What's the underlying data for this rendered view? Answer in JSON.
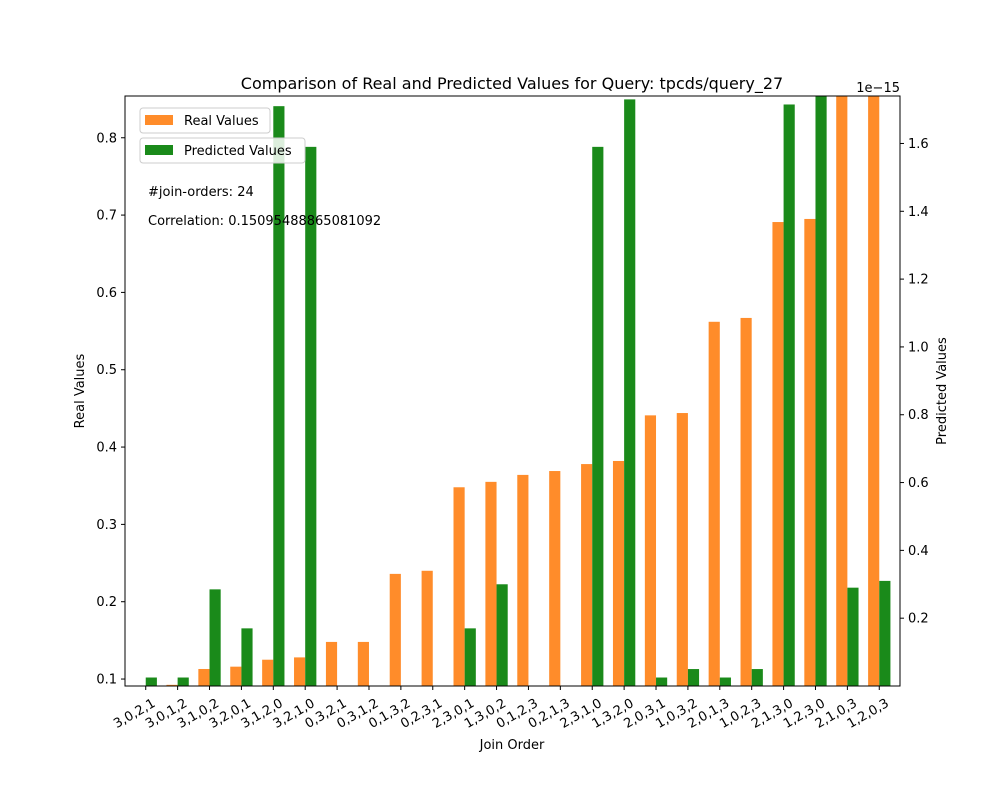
{
  "chart_data": {
    "type": "bar",
    "title": "Comparison of Real and Predicted Values for Query: tpcds/query_27",
    "xlabel": "Join Order",
    "ylabel": "Real Values",
    "ylabel_right": "Predicted Values",
    "right_axis_offset_text": "1e−15",
    "ylim": [
      0.091,
      0.854
    ],
    "ylim_right": [
      0.0,
      1.74
    ],
    "yticks": [
      0.1,
      0.2,
      0.3,
      0.4,
      0.5,
      0.6,
      0.7,
      0.8
    ],
    "yticks_right": [
      0.2,
      0.4,
      0.6,
      0.8,
      1.0,
      1.2,
      1.4,
      1.6
    ],
    "grid": false,
    "legend_placement": "top-left",
    "categories": [
      "3,0,2,1",
      "3,0,1,2",
      "3,1,0,2",
      "3,2,0,1",
      "3,1,2,0",
      "3,2,1,0",
      "0,3,2,1",
      "0,3,1,2",
      "0,1,3,2",
      "0,2,3,1",
      "2,3,0,1",
      "1,3,0,2",
      "0,1,2,3",
      "0,2,1,3",
      "2,3,1,0",
      "1,3,2,0",
      "2,0,3,1",
      "1,0,3,2",
      "2,0,1,3",
      "1,0,2,3",
      "2,1,3,0",
      "1,2,3,0",
      "2,1,0,3",
      "1,2,0,3"
    ],
    "series": [
      {
        "name": "Real Values",
        "axis": "left",
        "color": "#ff8c2a",
        "values": [
          0.0907,
          0.0925,
          0.113,
          0.116,
          0.125,
          0.128,
          0.148,
          0.148,
          0.236,
          0.24,
          0.348,
          0.355,
          0.364,
          0.369,
          0.378,
          0.382,
          0.441,
          0.444,
          0.562,
          0.567,
          0.691,
          0.695,
          0.86,
          0.86
        ]
      },
      {
        "name": "Predicted Values",
        "axis": "right",
        "color": "#1a8a1a",
        "values": [
          0.025,
          0.025,
          0.285,
          0.17,
          1.71,
          1.59,
          0.0,
          0.0,
          0.0,
          0.0,
          0.17,
          0.3,
          0.0,
          0.0,
          1.59,
          1.73,
          0.025,
          0.05,
          0.025,
          0.05,
          1.715,
          1.75,
          0.29,
          0.31
        ]
      }
    ],
    "annotations": [
      "#join-orders: 24",
      "Correlation: 0.15095488865081092"
    ]
  }
}
